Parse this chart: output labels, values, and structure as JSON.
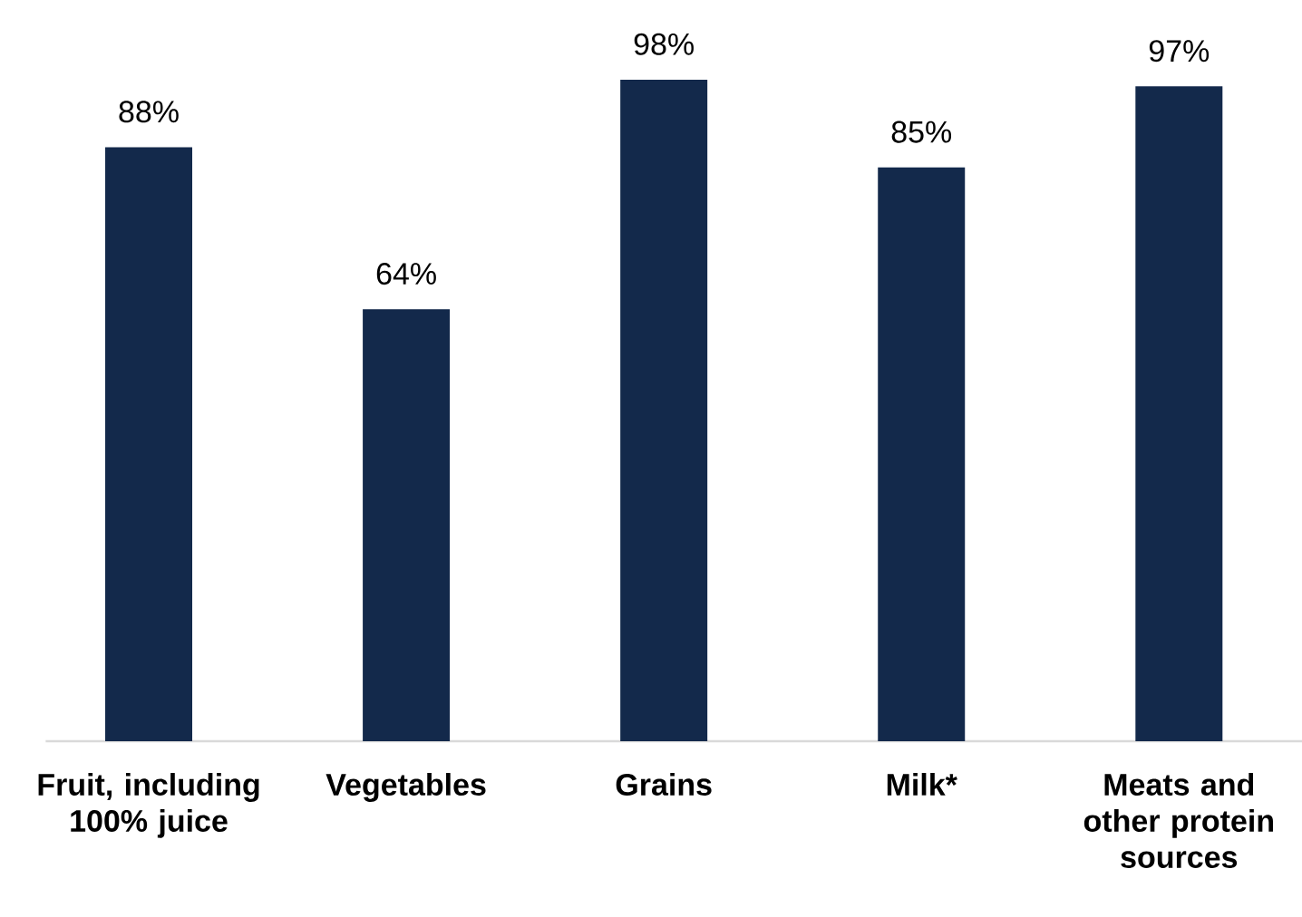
{
  "chart_data": {
    "type": "bar",
    "categories": [
      "Fruit, including 100% juice",
      "Vegetables",
      "Grains",
      "Milk*",
      "Meats and other protein sources"
    ],
    "values": [
      88,
      64,
      98,
      85,
      97
    ],
    "value_labels": [
      "88%",
      "64%",
      "98%",
      "85%",
      "97%"
    ],
    "color": "#13294b",
    "grid": false
  }
}
